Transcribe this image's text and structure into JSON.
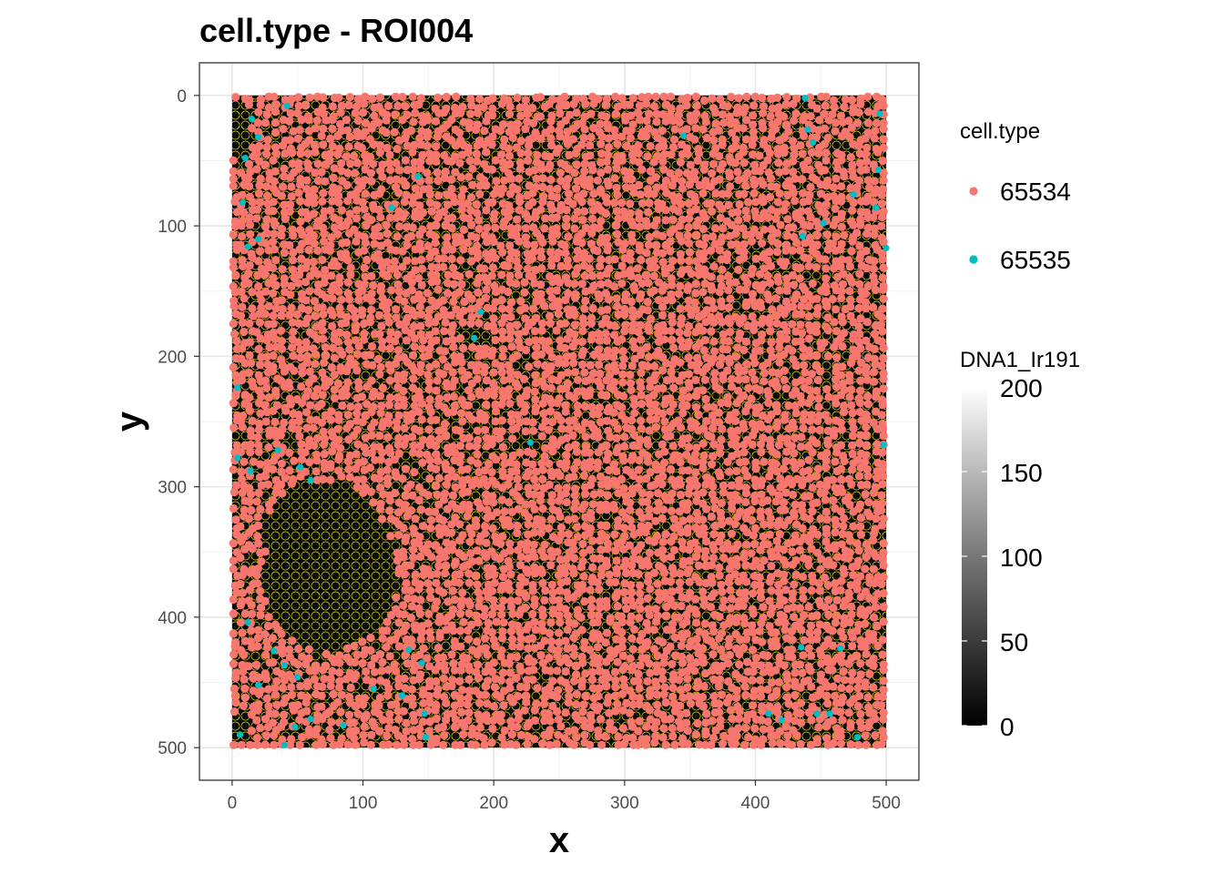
{
  "chart_data": {
    "type": "scatter",
    "title": "cell.type - ROI004",
    "xlabel": "x",
    "ylabel": "y",
    "xlim": [
      -25,
      525
    ],
    "ylim": [
      525,
      -25
    ],
    "x_ticks": [
      0,
      100,
      200,
      300,
      400,
      500
    ],
    "y_ticks": [
      0,
      100,
      200,
      300,
      400,
      500
    ],
    "grid": true,
    "background_image": {
      "name": "DNA1_Ir191",
      "extent": {
        "x": [
          0,
          500
        ],
        "y": [
          0,
          500
        ]
      },
      "scale": {
        "min": 0,
        "max": 200,
        "ticks": [
          0,
          50,
          100,
          150,
          200
        ]
      }
    },
    "outline_color": "#ffff00",
    "legend": {
      "position": "right",
      "color_title": "cell.type",
      "fill_title": "DNA1_Ir191"
    },
    "series": [
      {
        "name": "65534",
        "color": "#F8766D",
        "pattern": "dense cell centroids covering the tissue, sparse in the dark region near x 20-130, y 300-420"
      },
      {
        "name": "65535",
        "color": "#00BFC4",
        "points": [
          [
            15,
            18
          ],
          [
            20,
            32
          ],
          [
            42,
            8
          ],
          [
            10,
            48
          ],
          [
            8,
            82
          ],
          [
            12,
            116
          ],
          [
            20,
            110
          ],
          [
            142,
            62
          ],
          [
            122,
            86
          ],
          [
            345,
            31
          ],
          [
            438,
            2
          ],
          [
            440,
            26
          ],
          [
            444,
            36
          ],
          [
            495,
            14
          ],
          [
            494,
            57
          ],
          [
            475,
            76
          ],
          [
            492,
            86
          ],
          [
            452,
            98
          ],
          [
            436,
            108
          ],
          [
            500,
            117
          ],
          [
            190,
            166
          ],
          [
            185,
            186
          ],
          [
            228,
            266
          ],
          [
            4,
            224
          ],
          [
            4,
            278
          ],
          [
            35,
            272
          ],
          [
            14,
            288
          ],
          [
            52,
            285
          ],
          [
            60,
            295
          ],
          [
            498,
            268
          ],
          [
            12,
            404
          ],
          [
            32,
            426
          ],
          [
            40,
            437
          ],
          [
            50,
            446
          ],
          [
            20,
            452
          ],
          [
            135,
            425
          ],
          [
            145,
            435
          ],
          [
            60,
            478
          ],
          [
            48,
            484
          ],
          [
            6,
            490
          ],
          [
            40,
            498
          ],
          [
            85,
            483
          ],
          [
            108,
            455
          ],
          [
            130,
            460
          ],
          [
            147,
            474
          ],
          [
            148,
            492
          ],
          [
            410,
            474
          ],
          [
            420,
            479
          ],
          [
            435,
            423
          ],
          [
            465,
            424
          ],
          [
            447,
            474
          ],
          [
            457,
            474
          ],
          [
            478,
            492
          ]
        ]
      }
    ]
  }
}
